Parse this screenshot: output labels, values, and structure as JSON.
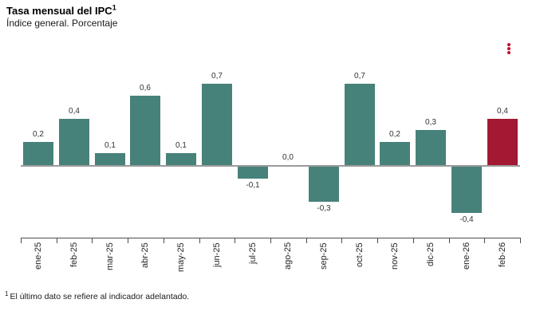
{
  "header": {
    "title": "Tasa mensual del IPC",
    "title_sup": "1",
    "subtitle": "Índice general. Porcentaje"
  },
  "menu": {
    "icon": "kebab-menu-icon",
    "dot_color": "#C01030"
  },
  "footnote": {
    "sup": "1",
    "text": "El último dato se refiere al indicador adelantado."
  },
  "chart_data": {
    "type": "bar",
    "title": "Tasa mensual del IPC",
    "subtitle": "Índice general. Porcentaje",
    "categories": [
      "ene-25",
      "feb-25",
      "mar-25",
      "abr-25",
      "may-25",
      "jun-25",
      "jul-25",
      "ago-25",
      "sep-25",
      "oct-25",
      "nov-25",
      "dic-25",
      "ene-26",
      "feb-26"
    ],
    "values": [
      0.2,
      0.4,
      0.1,
      0.6,
      0.1,
      0.7,
      -0.1,
      0.0,
      -0.3,
      0.7,
      0.2,
      0.3,
      -0.4,
      0.4
    ],
    "value_labels": [
      "0,2",
      "0,4",
      "0,1",
      "0,6",
      "0,1",
      "0,7",
      "-0,1",
      "0,0",
      "-0,3",
      "0,7",
      "0,2",
      "0,3",
      "-0,4",
      "0,4"
    ],
    "decimal_separator": ",",
    "xlabel": "",
    "ylabel": "",
    "ylim": [
      -0.5,
      0.8
    ],
    "grid": false,
    "legend": "none",
    "bar_color": "#47827A",
    "highlight_color": "#A31832",
    "highlight_index": 13,
    "zero_line_color": "#9B9B9B",
    "axis_color": "#4D4D4D"
  }
}
